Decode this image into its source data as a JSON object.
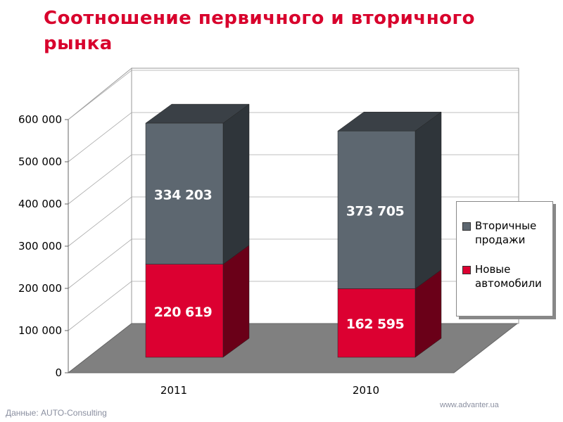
{
  "chart_data": {
    "type": "bar3d_stacked",
    "title": "Соотношение первичного и вторичного рынка",
    "categories": [
      "2011",
      "2010"
    ],
    "series": [
      {
        "name": "Новые автомобили",
        "color": "#dc0031",
        "side_color": "#6a0018",
        "top_color": "#8a0020",
        "values": [
          220619,
          162595
        ],
        "value_labels": [
          "220 619",
          "162 595"
        ]
      },
      {
        "name": "Вторичные продажи",
        "color": "#5d6770",
        "side_color": "#2f353a",
        "top_color": "#3a4046",
        "values": [
          334203,
          373705
        ],
        "value_labels": [
          "334 203",
          "373 705"
        ]
      }
    ],
    "ylim": [
      0,
      600000
    ],
    "yticks": [
      0,
      {
        "value": 100000,
        "label": "100 000"
      },
      {
        "value": 200000,
        "label": "200 000"
      },
      {
        "value": 300000,
        "label": "300 000"
      },
      {
        "value": 400000,
        "label": "400 000"
      },
      {
        "value": 500000,
        "label": "500 000"
      },
      {
        "value": 600000,
        "label": "600 000"
      }
    ],
    "grid": true,
    "source": "Данные: AUTO-Consulting",
    "url": "www.advanter.ua"
  }
}
